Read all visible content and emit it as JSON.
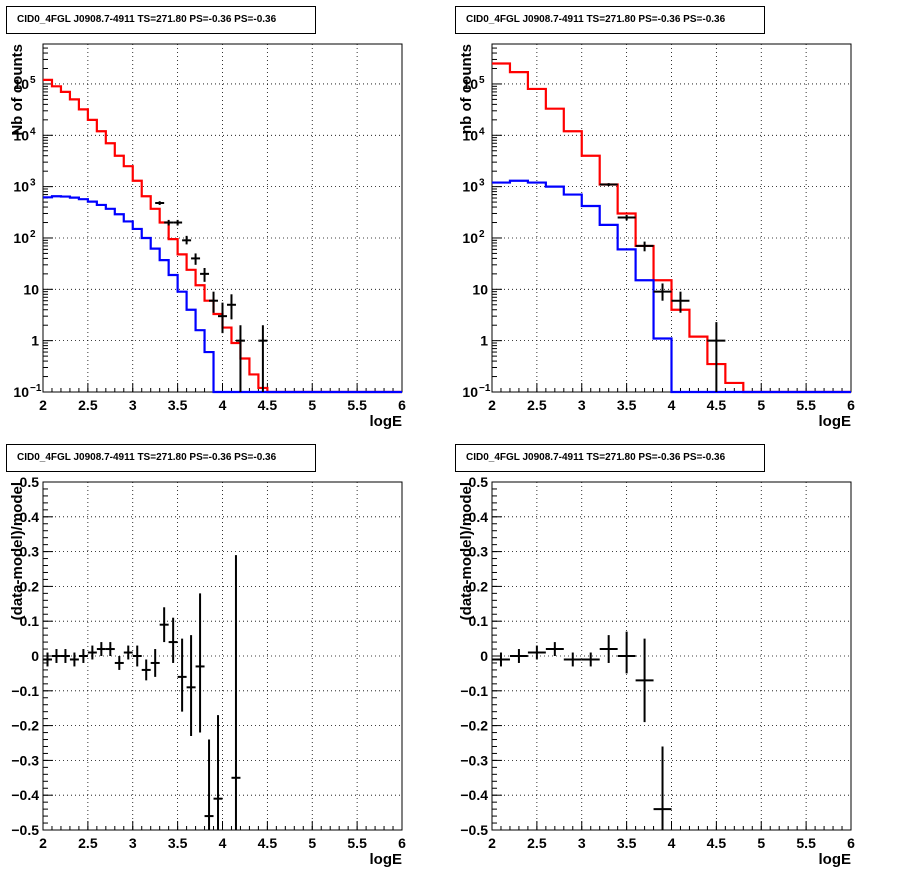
{
  "colors": {
    "data": "#000000",
    "total_model": "#ff0000",
    "component_model": "#0000ff",
    "grid": "#000000"
  },
  "chart_data": [
    {
      "id": "tl",
      "type": "line",
      "title": "CID0_4FGL J0908.7-4911 TS=271.80 PS=-0.36 PS=-0.36",
      "xlabel": "logE",
      "ylabel": "Nb of counts",
      "xlim": [
        2,
        6
      ],
      "ylim": [
        0.1,
        600000
      ],
      "yscale": "log",
      "grid": true,
      "x_ticks": [
        "2",
        "2.5",
        "3",
        "3.5",
        "4",
        "4.5",
        "5",
        "5.5",
        "6"
      ],
      "y_ticks": [
        {
          "value": 0.1,
          "label": "10",
          "exp": "−1"
        },
        {
          "value": 1,
          "label": "1",
          "exp": ""
        },
        {
          "value": 10,
          "label": "10",
          "exp": ""
        },
        {
          "value": 100,
          "label": "10",
          "exp": "2"
        },
        {
          "value": 1000,
          "label": "10",
          "exp": "3"
        },
        {
          "value": 10000,
          "label": "10",
          "exp": "4"
        },
        {
          "value": 100000,
          "label": "10",
          "exp": "5"
        }
      ],
      "series": [
        {
          "kind": "step",
          "color": "total_model",
          "edges": [
            2.0,
            2.1,
            2.2,
            2.3,
            2.4,
            2.5,
            2.6,
            2.7,
            2.8,
            2.9,
            3.0,
            3.1,
            3.2,
            3.3,
            3.4,
            3.5,
            3.6,
            3.7,
            3.8,
            3.9,
            4.0,
            4.1,
            4.2,
            4.3,
            4.4,
            4.5,
            4.6,
            4.7,
            4.8,
            4.9,
            5.0,
            5.1,
            5.2,
            5.3,
            5.4,
            5.5,
            5.6,
            5.7,
            5.8,
            5.9,
            6.0
          ],
          "values": [
            120000,
            90000,
            70000,
            50000,
            32000,
            20000,
            12000,
            7000,
            4000,
            2500,
            1300,
            650,
            370,
            200,
            95,
            48,
            24,
            12,
            6,
            3.3,
            1.8,
            0.9,
            0.45,
            0.22,
            0.12,
            0.1,
            0.1,
            0.1,
            0.1,
            0.1,
            0.1,
            0.1,
            0.1,
            0.1,
            0.1,
            0.1,
            0.1,
            0.1,
            0.1,
            0.1
          ]
        },
        {
          "kind": "step",
          "color": "component_model",
          "edges": [
            2.0,
            2.1,
            2.2,
            2.3,
            2.4,
            2.5,
            2.6,
            2.7,
            2.8,
            2.9,
            3.0,
            3.1,
            3.2,
            3.3,
            3.4,
            3.5,
            3.6,
            3.7,
            3.8,
            3.9,
            4.0,
            4.1,
            4.2,
            4.3,
            4.4,
            4.5,
            4.6,
            4.7,
            4.8,
            4.9,
            5.0,
            5.1,
            5.2,
            5.3,
            5.4,
            5.5,
            5.6,
            5.7,
            5.8,
            5.9,
            6.0
          ],
          "values": [
            620,
            650,
            640,
            610,
            570,
            510,
            440,
            370,
            290,
            210,
            150,
            100,
            62,
            37,
            19,
            9,
            4,
            1.6,
            0.6,
            0.1,
            0.1,
            0.1,
            0.1,
            0.1,
            0.1,
            0.1,
            0.1,
            0.1,
            0.1,
            0.1,
            0.1,
            0.1,
            0.1,
            0.1,
            0.1,
            0.1,
            0.1,
            0.1,
            0.1,
            0.1
          ]
        },
        {
          "kind": "errorbar",
          "color": "data",
          "x": [
            3.3,
            3.4,
            3.5,
            3.6,
            3.7,
            3.8,
            3.9,
            4.0,
            4.1,
            4.2,
            4.45
          ],
          "y": [
            480,
            200,
            200,
            90,
            40,
            20,
            6,
            3,
            5,
            1,
            1
          ],
          "xerr": 0.05,
          "ylo": [
            440,
            175,
            175,
            75,
            30,
            14,
            3.5,
            1.4,
            2.6,
            0.1,
            0.1
          ],
          "yhi": [
            520,
            225,
            225,
            110,
            50,
            26,
            9,
            5.5,
            8,
            2,
            2
          ]
        }
      ]
    },
    {
      "id": "tr",
      "type": "line",
      "title": "CID0_4FGL J0908.7-4911 TS=271.80 PS=-0.36 PS=-0.36",
      "xlabel": "logE",
      "ylabel": "nb of counts",
      "xlim": [
        2,
        6
      ],
      "ylim": [
        0.1,
        600000
      ],
      "yscale": "log",
      "grid": true,
      "x_ticks": [
        "2",
        "2.5",
        "3",
        "3.5",
        "4",
        "4.5",
        "5",
        "5.5",
        "6"
      ],
      "y_ticks": [
        {
          "value": 0.1,
          "label": "10",
          "exp": "−1"
        },
        {
          "value": 1,
          "label": "1",
          "exp": ""
        },
        {
          "value": 10,
          "label": "10",
          "exp": ""
        },
        {
          "value": 100,
          "label": "10",
          "exp": "2"
        },
        {
          "value": 1000,
          "label": "10",
          "exp": "3"
        },
        {
          "value": 10000,
          "label": "10",
          "exp": "4"
        },
        {
          "value": 100000,
          "label": "10",
          "exp": "5"
        }
      ],
      "series": [
        {
          "kind": "step",
          "color": "total_model",
          "edges": [
            2.0,
            2.2,
            2.4,
            2.6,
            2.8,
            3.0,
            3.2,
            3.4,
            3.6,
            3.8,
            4.0,
            4.2,
            4.4,
            4.6,
            4.8,
            5.0,
            5.2,
            5.4,
            5.6,
            5.8,
            6.0
          ],
          "values": [
            250000,
            170000,
            80000,
            33000,
            12000,
            4000,
            1100,
            300,
            70,
            15,
            4,
            1.2,
            0.35,
            0.15,
            0.1,
            0.1,
            0.1,
            0.1,
            0.1,
            0.1
          ]
        },
        {
          "kind": "step",
          "color": "component_model",
          "edges": [
            2.0,
            2.2,
            2.4,
            2.6,
            2.8,
            3.0,
            3.2,
            3.4,
            3.6,
            3.8,
            4.0,
            4.2,
            4.4,
            4.6,
            4.8,
            5.0,
            5.2,
            5.4,
            5.6,
            5.8,
            6.0
          ],
          "values": [
            1200,
            1300,
            1200,
            1000,
            700,
            420,
            180,
            60,
            15,
            1.1,
            0.1,
            0.1,
            0.1,
            0.1,
            0.1,
            0.1,
            0.1,
            0.1,
            0.1,
            0.1
          ]
        },
        {
          "kind": "errorbar",
          "color": "data",
          "x": [
            3.3,
            3.5,
            3.7,
            3.9,
            4.1,
            4.5
          ],
          "y": [
            1100,
            250,
            70,
            9,
            6,
            1
          ],
          "xerr": 0.1,
          "ylo": [
            1030,
            220,
            55,
            6,
            3.5,
            0.1
          ],
          "yhi": [
            1170,
            280,
            85,
            13,
            9,
            2.3
          ]
        }
      ]
    },
    {
      "id": "bl",
      "type": "scatter",
      "title": "CID0_4FGL J0908.7-4911 TS=271.80 PS=-0.36 PS=-0.36",
      "xlabel": "logE",
      "ylabel": "(data-model)/model",
      "xlim": [
        2,
        6
      ],
      "ylim": [
        -0.5,
        0.5
      ],
      "yscale": "linear",
      "grid": true,
      "x_ticks": [
        "2",
        "2.5",
        "3",
        "3.5",
        "4",
        "4.5",
        "5",
        "5.5",
        "6"
      ],
      "y_ticks": [
        {
          "value": -0.5,
          "label": "−0.5",
          "exp": ""
        },
        {
          "value": -0.4,
          "label": "−0.4",
          "exp": ""
        },
        {
          "value": -0.3,
          "label": "−0.3",
          "exp": ""
        },
        {
          "value": -0.2,
          "label": "−0.2",
          "exp": ""
        },
        {
          "value": -0.1,
          "label": "−0.1",
          "exp": ""
        },
        {
          "value": 0,
          "label": "0",
          "exp": ""
        },
        {
          "value": 0.1,
          "label": "0.1",
          "exp": ""
        },
        {
          "value": 0.2,
          "label": "0.2",
          "exp": ""
        },
        {
          "value": 0.3,
          "label": "0.3",
          "exp": ""
        },
        {
          "value": 0.4,
          "label": "0.4",
          "exp": ""
        },
        {
          "value": 0.5,
          "label": "0.5",
          "exp": ""
        }
      ],
      "series": [
        {
          "kind": "errorbar",
          "color": "data",
          "x": [
            2.05,
            2.15,
            2.25,
            2.35,
            2.45,
            2.55,
            2.65,
            2.75,
            2.85,
            2.95,
            3.05,
            3.15,
            3.25,
            3.35,
            3.45,
            3.55,
            3.65,
            3.75,
            3.85,
            3.95,
            4.15
          ],
          "y": [
            -0.01,
            0.0,
            0.0,
            -0.01,
            0.0,
            0.01,
            0.02,
            0.02,
            -0.02,
            0.01,
            0.0,
            -0.04,
            -0.02,
            0.09,
            0.04,
            -0.06,
            -0.09,
            -0.03,
            -0.46,
            -0.41,
            -0.35
          ],
          "xerr": 0.05,
          "ylo": [
            -0.03,
            -0.02,
            -0.02,
            -0.03,
            -0.02,
            -0.01,
            0.0,
            0.0,
            -0.04,
            -0.01,
            -0.03,
            -0.07,
            -0.06,
            0.04,
            -0.02,
            -0.16,
            -0.23,
            -0.22,
            -0.5,
            -0.5,
            -0.5
          ],
          "yhi": [
            0.01,
            0.02,
            0.02,
            0.01,
            0.02,
            0.03,
            0.04,
            0.04,
            0.0,
            0.03,
            0.03,
            -0.01,
            0.02,
            0.14,
            0.11,
            0.05,
            0.06,
            0.18,
            -0.24,
            -0.17,
            0.29
          ]
        }
      ]
    },
    {
      "id": "br",
      "type": "scatter",
      "title": "CID0_4FGL J0908.7-4911 TS=271.80 PS=-0.36 PS=-0.36",
      "xlabel": "logE",
      "ylabel": "(data-model)/model",
      "xlim": [
        2,
        6
      ],
      "ylim": [
        -0.5,
        0.5
      ],
      "yscale": "linear",
      "grid": true,
      "x_ticks": [
        "2",
        "2.5",
        "3",
        "3.5",
        "4",
        "4.5",
        "5",
        "5.5",
        "6"
      ],
      "y_ticks": [
        {
          "value": -0.5,
          "label": "−0.5",
          "exp": ""
        },
        {
          "value": -0.4,
          "label": "−0.4",
          "exp": ""
        },
        {
          "value": -0.3,
          "label": "−0.3",
          "exp": ""
        },
        {
          "value": -0.2,
          "label": "−0.2",
          "exp": ""
        },
        {
          "value": -0.1,
          "label": "−0.1",
          "exp": ""
        },
        {
          "value": 0,
          "label": "0",
          "exp": ""
        },
        {
          "value": 0.1,
          "label": "0.1",
          "exp": ""
        },
        {
          "value": 0.2,
          "label": "0.2",
          "exp": ""
        },
        {
          "value": 0.3,
          "label": "0.3",
          "exp": ""
        },
        {
          "value": 0.4,
          "label": "0.4",
          "exp": ""
        },
        {
          "value": 0.5,
          "label": "0.5",
          "exp": ""
        }
      ],
      "series": [
        {
          "kind": "errorbar",
          "color": "data",
          "x": [
            2.1,
            2.3,
            2.5,
            2.7,
            2.9,
            3.1,
            3.3,
            3.5,
            3.7,
            3.9
          ],
          "y": [
            -0.01,
            0.0,
            0.01,
            0.02,
            -0.01,
            -0.01,
            0.02,
            0.0,
            -0.07,
            -0.44
          ],
          "xerr": 0.1,
          "ylo": [
            -0.03,
            -0.02,
            -0.01,
            0.0,
            -0.03,
            -0.03,
            -0.02,
            -0.05,
            -0.19,
            -0.5
          ],
          "yhi": [
            0.01,
            0.02,
            0.03,
            0.04,
            0.01,
            0.01,
            0.06,
            0.07,
            0.05,
            -0.26
          ]
        }
      ]
    }
  ]
}
